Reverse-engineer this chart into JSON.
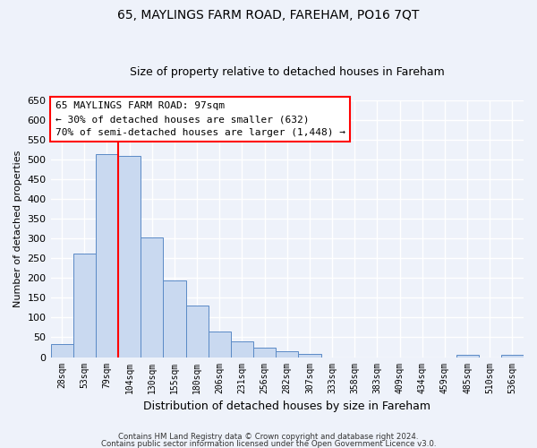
{
  "title": "65, MAYLINGS FARM ROAD, FAREHAM, PO16 7QT",
  "subtitle": "Size of property relative to detached houses in Fareham",
  "xlabel": "Distribution of detached houses by size in Fareham",
  "ylabel": "Number of detached properties",
  "bin_labels": [
    "28sqm",
    "53sqm",
    "79sqm",
    "104sqm",
    "130sqm",
    "155sqm",
    "180sqm",
    "206sqm",
    "231sqm",
    "256sqm",
    "282sqm",
    "307sqm",
    "333sqm",
    "358sqm",
    "383sqm",
    "409sqm",
    "434sqm",
    "459sqm",
    "485sqm",
    "510sqm",
    "536sqm"
  ],
  "bar_values": [
    33,
    263,
    513,
    510,
    303,
    195,
    130,
    64,
    40,
    24,
    15,
    8,
    0,
    0,
    0,
    0,
    0,
    0,
    5,
    0,
    5
  ],
  "bar_color": "#c9d9f0",
  "bar_edge_color": "#5a8ac6",
  "vline_x": 2.5,
  "vline_color": "red",
  "ylim": [
    0,
    650
  ],
  "yticks": [
    0,
    50,
    100,
    150,
    200,
    250,
    300,
    350,
    400,
    450,
    500,
    550,
    600,
    650
  ],
  "annotation_line1": "65 MAYLINGS FARM ROAD: 97sqm",
  "annotation_line2": "← 30% of detached houses are smaller (632)",
  "annotation_line3": "70% of semi-detached houses are larger (1,448) →",
  "annotation_box_color": "white",
  "annotation_box_edge": "red",
  "footer1": "Contains HM Land Registry data © Crown copyright and database right 2024.",
  "footer2": "Contains public sector information licensed under the Open Government Licence v3.0.",
  "background_color": "#eef2fa",
  "grid_color": "white",
  "title_fontsize": 10,
  "subtitle_fontsize": 9,
  "ylabel_fontsize": 8,
  "xlabel_fontsize": 9
}
